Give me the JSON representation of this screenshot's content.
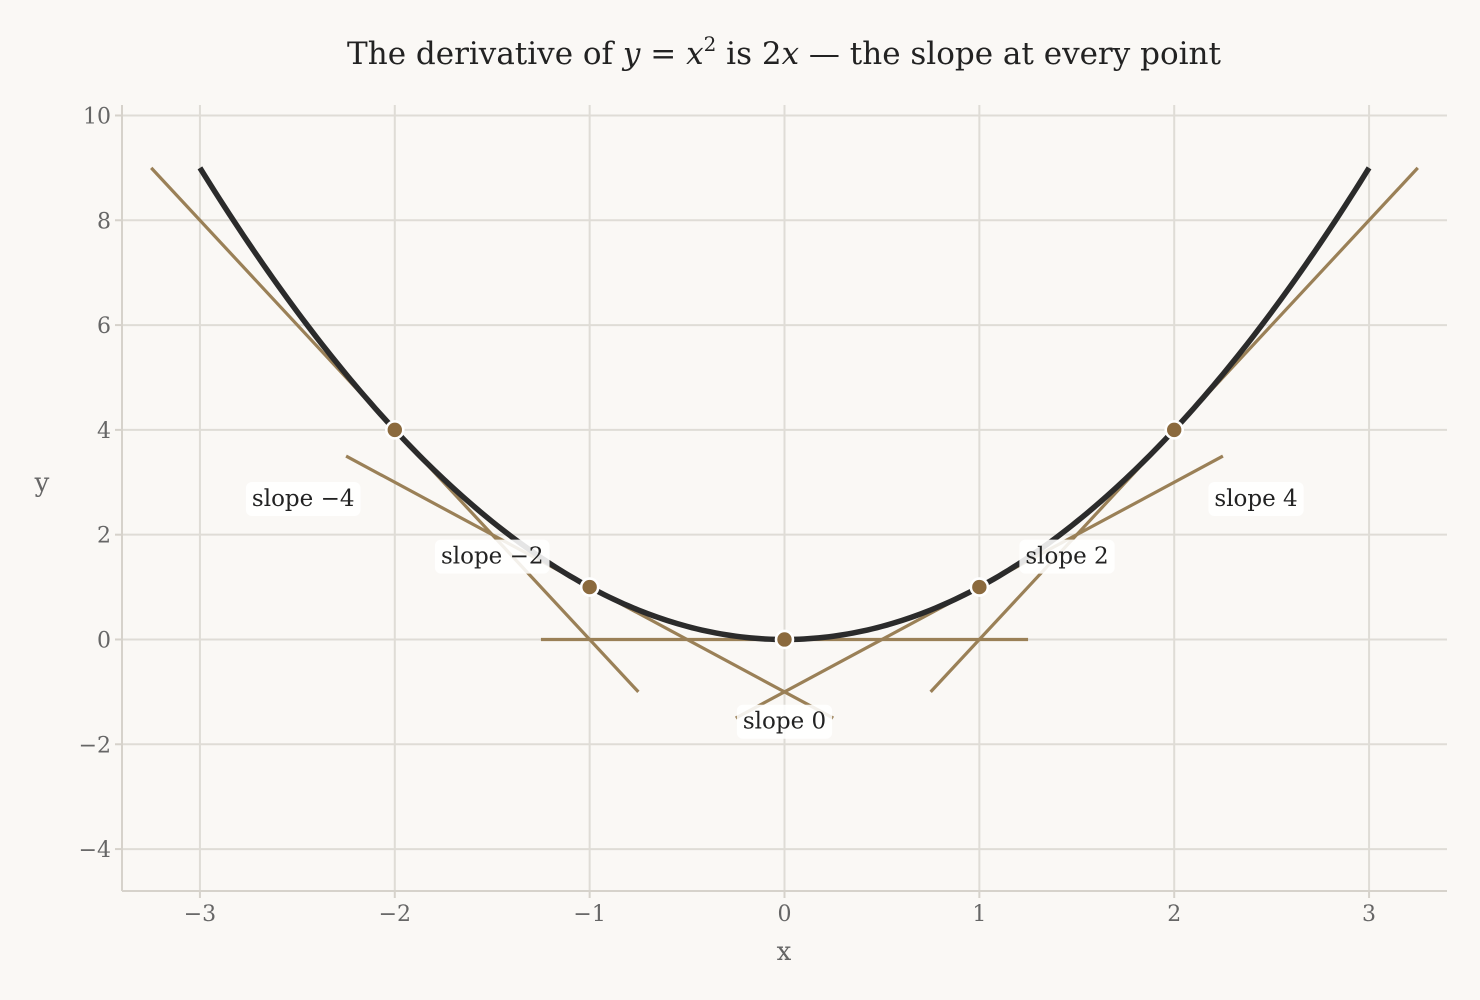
{
  "chart_data": {
    "type": "line",
    "title_parts": {
      "pre": "The derivative of ",
      "expr_y": "y",
      "expr_eq": " = ",
      "expr_x": "x",
      "expr_exp": "2",
      "mid": " is ",
      "expr_2": "2",
      "expr_x2": "x",
      "post": " — the slope at every point"
    },
    "xlabel": "x",
    "ylabel": "y",
    "xlim": [
      -3.4,
      3.4
    ],
    "ylim": [
      -4.8,
      10.2
    ],
    "xticks": [
      -3,
      -2,
      -1,
      0,
      1,
      2,
      3
    ],
    "xtick_labels": [
      "−3",
      "−2",
      "−1",
      "0",
      "1",
      "2",
      "3"
    ],
    "yticks": [
      -4,
      -2,
      0,
      2,
      4,
      6,
      8,
      10
    ],
    "ytick_labels": [
      "−4",
      "−2",
      "0",
      "2",
      "4",
      "6",
      "8",
      "10"
    ],
    "grid": true,
    "curve": {
      "function": "x^2",
      "x_range": [
        -3,
        3
      ],
      "color": "#2b2b2b"
    },
    "tangent_color": "#9a8057",
    "point_color": "#8b6a3e",
    "points": [
      {
        "x": -2,
        "y": 4,
        "slope": -4,
        "label": "slope −4",
        "label_x": -2.47,
        "label_y": 2.7
      },
      {
        "x": -1,
        "y": 1,
        "slope": -2,
        "label": "slope −2",
        "label_x": -1.5,
        "label_y": 1.6
      },
      {
        "x": 0,
        "y": 0,
        "slope": 0,
        "label": "slope 0",
        "label_x": 0,
        "label_y": -1.55
      },
      {
        "x": 1,
        "y": 1,
        "slope": 2,
        "label": "slope 2",
        "label_x": 1.45,
        "label_y": 1.6
      },
      {
        "x": 2,
        "y": 4,
        "slope": 4,
        "label": "slope 4",
        "label_x": 2.42,
        "label_y": 2.7
      }
    ]
  }
}
